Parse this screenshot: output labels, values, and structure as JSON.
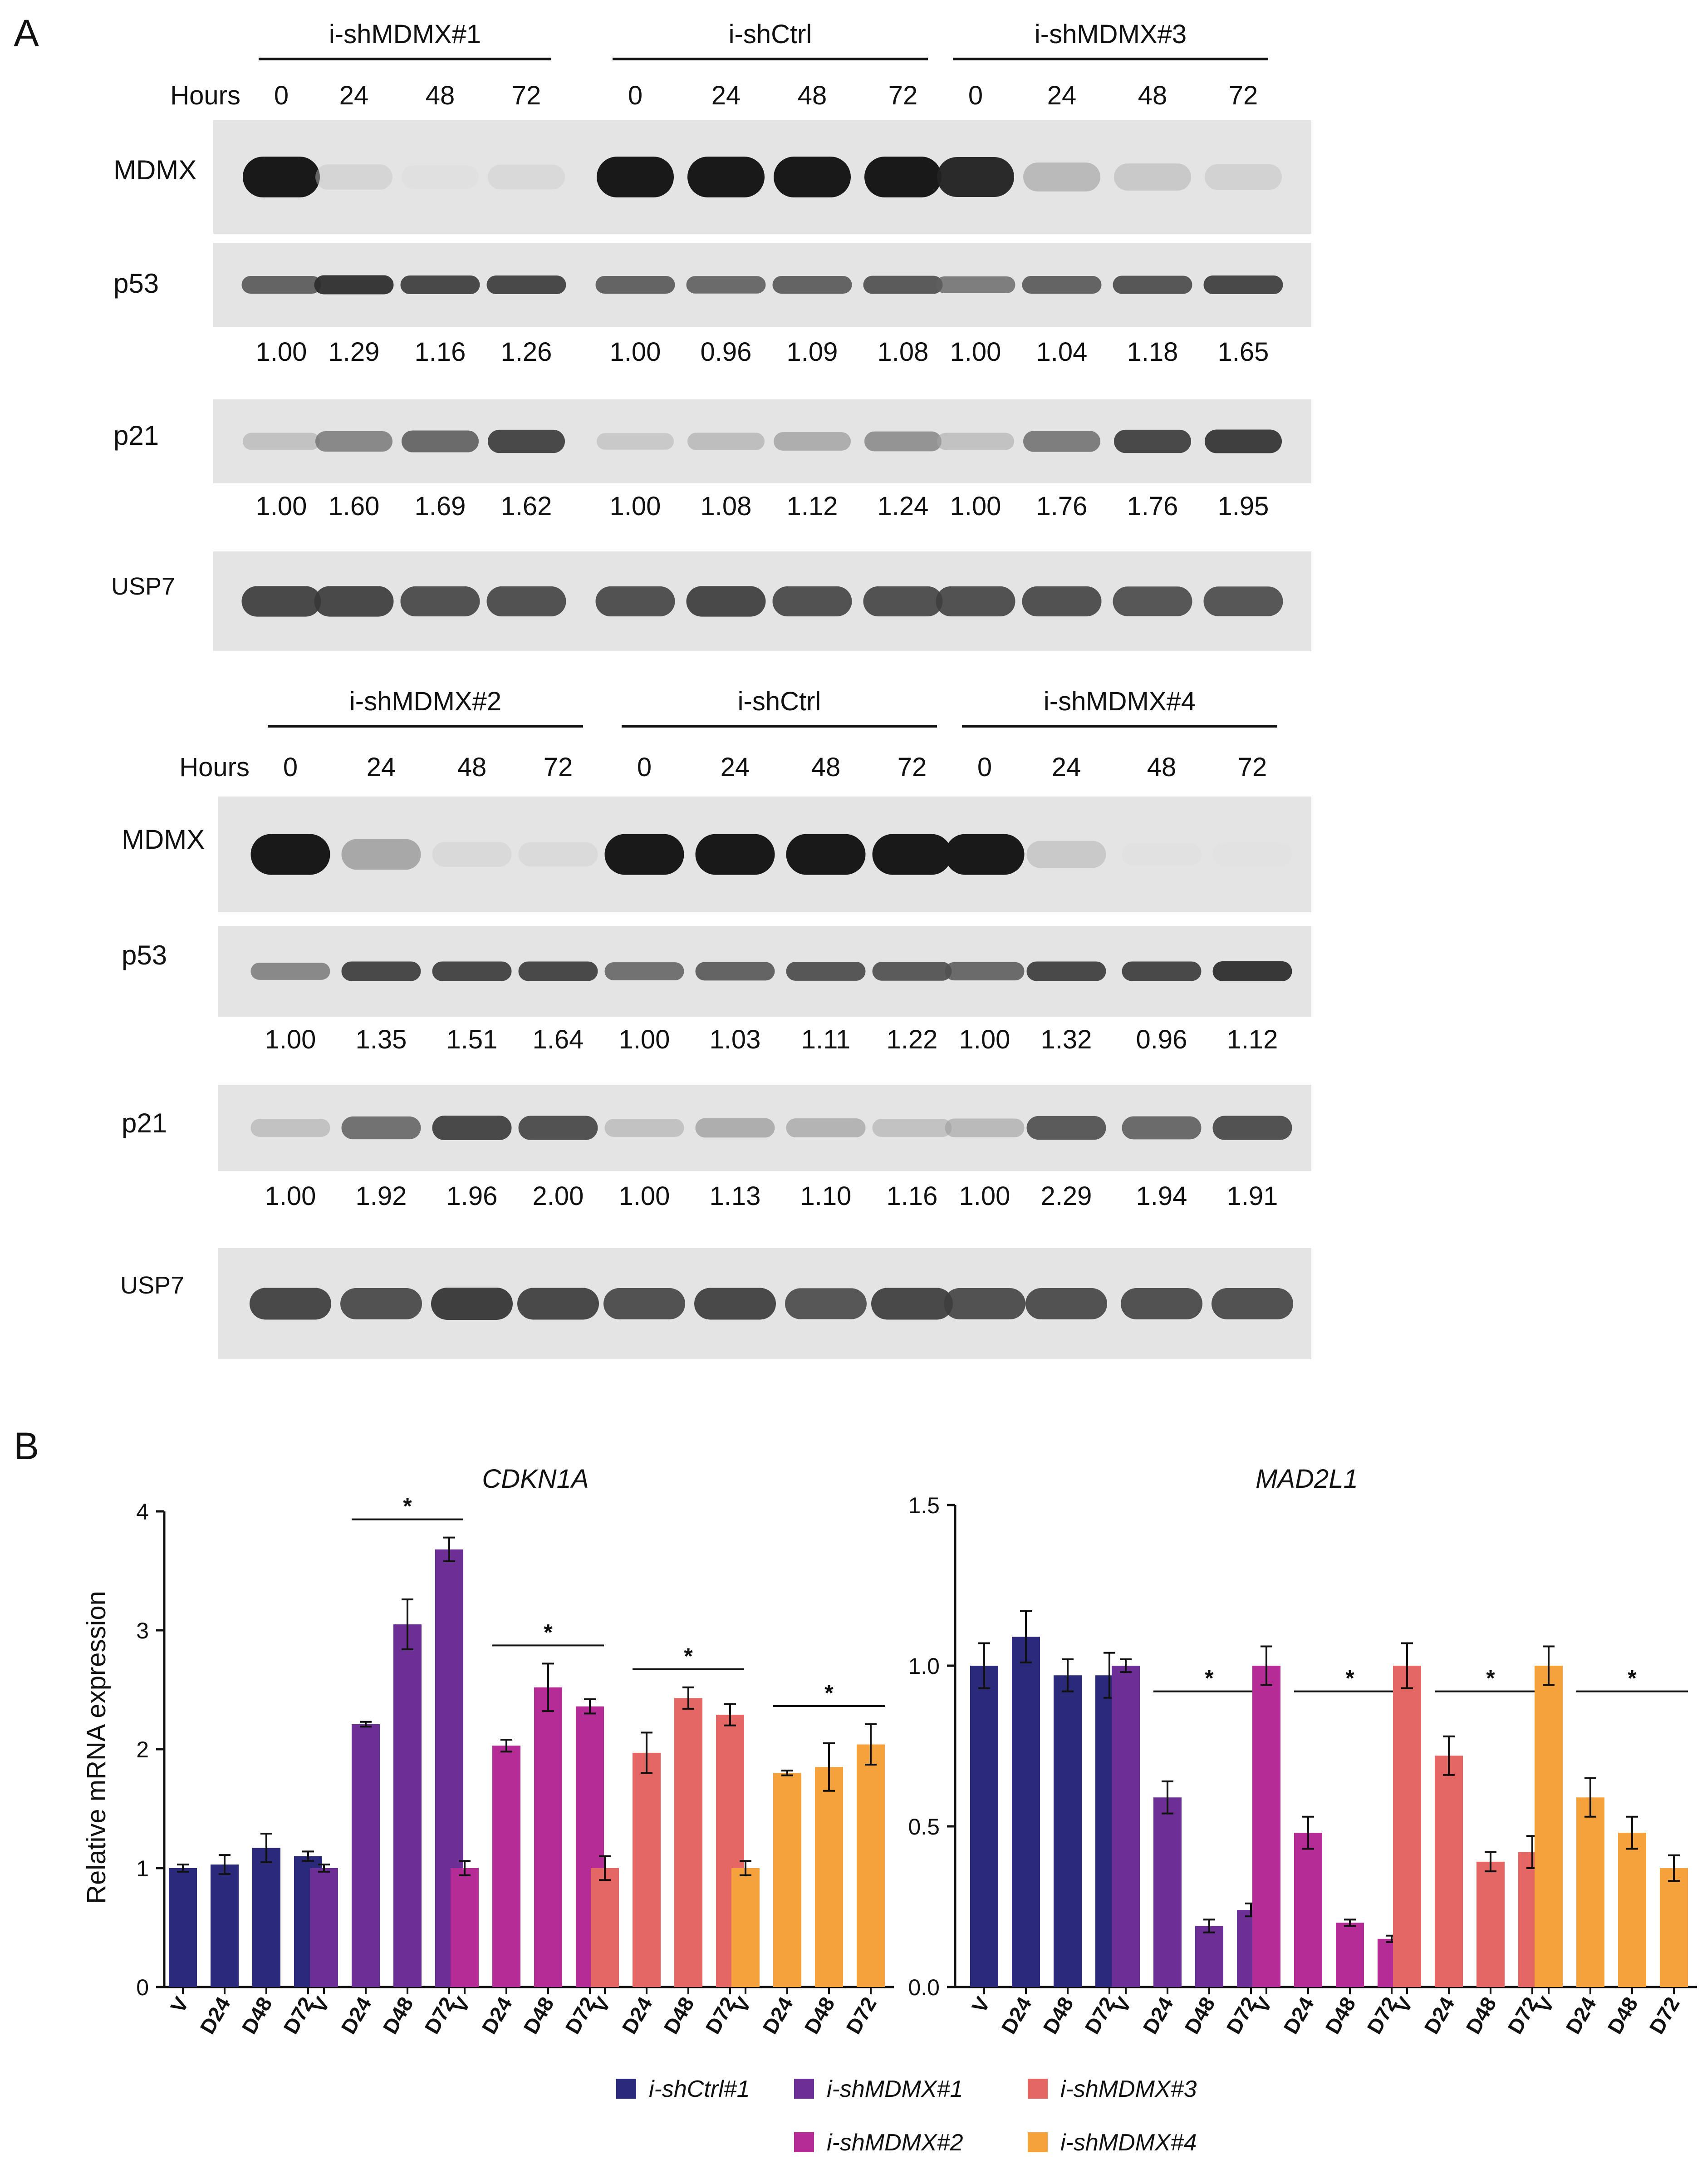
{
  "panel_a": {
    "label": "A",
    "hours_label": "Hours",
    "blots": [
      {
        "groups": [
          "i-shMDMX#1",
          "i-shCtrl",
          "i-shMDMX#3"
        ],
        "hours": [
          "0",
          "24",
          "48",
          "72",
          "0",
          "24",
          "48",
          "72",
          "0",
          "24",
          "48",
          "72"
        ],
        "rows": [
          {
            "label": "MDMX",
            "intensity": [
              1.0,
              0.15,
              0.04,
              0.12,
              1.0,
              1.0,
              1.0,
              1.0,
              0.95,
              0.35,
              0.25,
              0.18
            ]
          },
          {
            "label": "p53",
            "intensity": [
              0.75,
              0.9,
              0.85,
              0.85,
              0.75,
              0.72,
              0.75,
              0.78,
              0.65,
              0.75,
              0.8,
              0.85
            ],
            "values": [
              "1.00",
              "1.29",
              "1.16",
              "1.26",
              "1.00",
              "0.96",
              "1.09",
              "1.08",
              "1.00",
              "1.04",
              "1.18",
              "1.65"
            ]
          },
          {
            "label": "p21",
            "intensity": [
              0.3,
              0.6,
              0.72,
              0.85,
              0.25,
              0.32,
              0.42,
              0.55,
              0.3,
              0.65,
              0.85,
              0.88
            ],
            "values": [
              "1.00",
              "1.60",
              "1.69",
              "1.62",
              "1.00",
              "1.08",
              "1.12",
              "1.24",
              "1.00",
              "1.76",
              "1.76",
              "1.95"
            ]
          },
          {
            "label": "USP7",
            "intensity": [
              0.85,
              0.85,
              0.82,
              0.82,
              0.82,
              0.85,
              0.82,
              0.82,
              0.82,
              0.82,
              0.8,
              0.8
            ]
          }
        ]
      },
      {
        "groups": [
          "i-shMDMX#2",
          "i-shCtrl",
          "i-shMDMX#4"
        ],
        "hours": [
          "0",
          "24",
          "48",
          "72",
          "0",
          "24",
          "48",
          "72",
          "0",
          "24",
          "48",
          "72"
        ],
        "rows": [
          {
            "label": "MDMX",
            "intensity": [
              1.0,
              0.45,
              0.12,
              0.1,
              1.0,
              1.0,
              1.0,
              1.0,
              1.0,
              0.25,
              0.03,
              0.02
            ]
          },
          {
            "label": "p53",
            "intensity": [
              0.6,
              0.85,
              0.85,
              0.85,
              0.7,
              0.75,
              0.8,
              0.78,
              0.72,
              0.85,
              0.85,
              0.9
            ],
            "values": [
              "1.00",
              "1.35",
              "1.51",
              "1.64",
              "1.00",
              "1.03",
              "1.11",
              "1.22",
              "1.00",
              "1.32",
              "0.96",
              "1.12"
            ]
          },
          {
            "label": "p21",
            "intensity": [
              0.3,
              0.7,
              0.85,
              0.82,
              0.3,
              0.42,
              0.38,
              0.3,
              0.35,
              0.78,
              0.72,
              0.82
            ],
            "values": [
              "1.00",
              "1.92",
              "1.96",
              "2.00",
              "1.00",
              "1.13",
              "1.10",
              "1.16",
              "1.00",
              "2.29",
              "1.94",
              "1.91"
            ]
          },
          {
            "label": "USP7",
            "intensity": [
              0.85,
              0.82,
              0.88,
              0.85,
              0.82,
              0.85,
              0.8,
              0.85,
              0.82,
              0.82,
              0.82,
              0.82
            ]
          }
        ]
      }
    ]
  },
  "panel_b_label": "B",
  "legend": [
    {
      "label": "i-shCtrl#1",
      "color": "#2b2a7a"
    },
    {
      "label": "i-shMDMX#1",
      "color": "#6c2f96"
    },
    {
      "label": "i-shMDMX#3",
      "color": "#e56763"
    },
    {
      "label": "i-shMDMX#2",
      "color": "#b62c96"
    },
    {
      "label": "i-shMDMX#4",
      "color": "#f5a23c"
    }
  ],
  "chart_data": [
    {
      "type": "bar",
      "title": "CDKN1A",
      "ylabel": "Relative mRNA expression",
      "xlabel": "",
      "ylim": [
        0,
        4
      ],
      "yticks": [
        "0",
        "1",
        "2",
        "3",
        "4"
      ],
      "categories": [
        "V",
        "D24",
        "D48",
        "D72"
      ],
      "sig_marker": "*",
      "series": [
        {
          "name": "i-shCtrl#1",
          "color": "#2b2a7a",
          "values": [
            1.0,
            1.03,
            1.17,
            1.1
          ],
          "errors": [
            0.03,
            0.08,
            0.12,
            0.04
          ],
          "significant": false
        },
        {
          "name": "i-shMDMX#1",
          "color": "#6c2f96",
          "values": [
            1.0,
            2.21,
            3.05,
            3.68
          ],
          "errors": [
            0.03,
            0.02,
            0.21,
            0.1
          ],
          "significant": true
        },
        {
          "name": "i-shMDMX#2",
          "color": "#b62c96",
          "values": [
            1.0,
            2.03,
            2.52,
            2.36
          ],
          "errors": [
            0.06,
            0.05,
            0.2,
            0.06
          ],
          "significant": true
        },
        {
          "name": "i-shMDMX#3",
          "color": "#e56763",
          "values": [
            1.0,
            1.97,
            2.43,
            2.29
          ],
          "errors": [
            0.1,
            0.17,
            0.09,
            0.09
          ],
          "significant": true
        },
        {
          "name": "i-shMDMX#4",
          "color": "#f5a23c",
          "values": [
            1.0,
            1.8,
            1.85,
            2.04
          ],
          "errors": [
            0.06,
            0.02,
            0.2,
            0.17
          ],
          "significant": true
        }
      ]
    },
    {
      "type": "bar",
      "title": "MAD2L1",
      "ylabel": "",
      "xlabel": "",
      "ylim": [
        0,
        1.5
      ],
      "yticks": [
        "0.0",
        "0.5",
        "1.0",
        "1.5"
      ],
      "categories": [
        "V",
        "D24",
        "D48",
        "D72"
      ],
      "sig_marker": "*",
      "series": [
        {
          "name": "i-shCtrl#1",
          "color": "#2b2a7a",
          "values": [
            1.0,
            1.09,
            0.97,
            0.97
          ],
          "errors": [
            0.07,
            0.08,
            0.05,
            0.07
          ],
          "significant": false
        },
        {
          "name": "i-shMDMX#1",
          "color": "#6c2f96",
          "values": [
            1.0,
            0.59,
            0.19,
            0.24
          ],
          "errors": [
            0.02,
            0.05,
            0.02,
            0.02
          ],
          "significant": true
        },
        {
          "name": "i-shMDMX#2",
          "color": "#b62c96",
          "values": [
            1.0,
            0.48,
            0.2,
            0.15
          ],
          "errors": [
            0.06,
            0.05,
            0.01,
            0.01
          ],
          "significant": true
        },
        {
          "name": "i-shMDMX#3",
          "color": "#e56763",
          "values": [
            1.0,
            0.72,
            0.39,
            0.42
          ],
          "errors": [
            0.07,
            0.06,
            0.03,
            0.05
          ],
          "significant": true
        },
        {
          "name": "i-shMDMX#4",
          "color": "#f5a23c",
          "values": [
            1.0,
            0.59,
            0.48,
            0.37
          ],
          "errors": [
            0.06,
            0.06,
            0.05,
            0.04
          ],
          "significant": true
        }
      ]
    }
  ]
}
